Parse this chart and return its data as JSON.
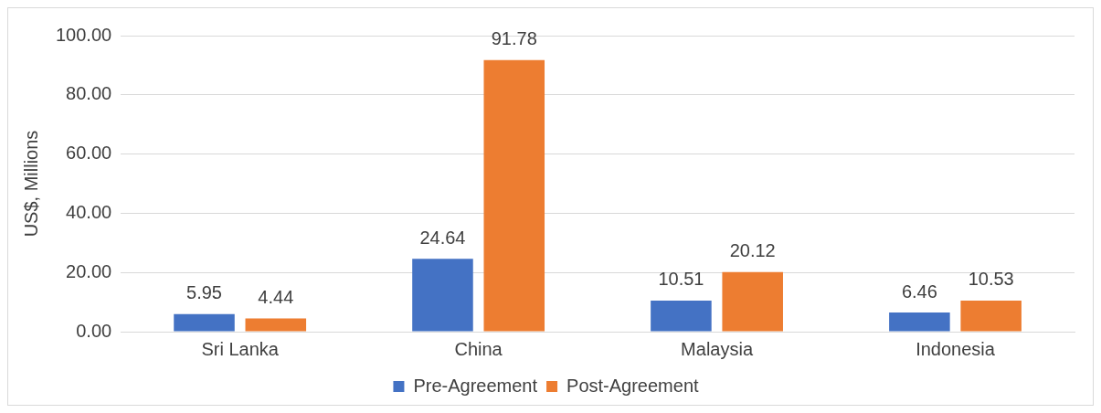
{
  "chart_data": {
    "type": "bar",
    "ylabel": "US$, Millions",
    "categories": [
      "Sri Lanka",
      "China",
      "Malaysia",
      "Indonesia"
    ],
    "series": [
      {
        "name": "Pre-Agreement",
        "color": "#4472c4",
        "values": [
          5.95,
          24.64,
          10.51,
          6.46
        ]
      },
      {
        "name": "Post-Agreement",
        "color": "#ed7d31",
        "values": [
          4.44,
          91.78,
          20.12,
          10.53
        ]
      }
    ],
    "ylim": [
      0,
      100
    ],
    "yticks": [
      {
        "value": 0,
        "label": "0.00"
      },
      {
        "value": 20,
        "label": "20.00"
      },
      {
        "value": 40,
        "label": "40.00"
      },
      {
        "value": 60,
        "label": "60.00"
      },
      {
        "value": 80,
        "label": "80.00"
      },
      {
        "value": 100,
        "label": "100.00"
      }
    ],
    "grid": "y",
    "legend": "bottom",
    "data_labels": true
  }
}
